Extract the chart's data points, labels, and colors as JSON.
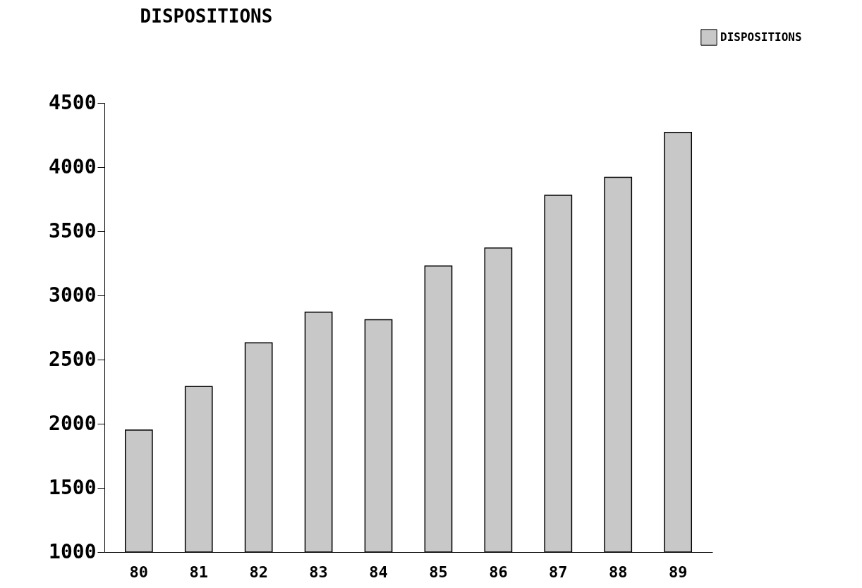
{
  "chart_data": {
    "type": "bar",
    "title": "DISPOSITIONS",
    "categories": [
      "80",
      "81",
      "82",
      "83",
      "84",
      "85",
      "86",
      "87",
      "88",
      "89"
    ],
    "series": [
      {
        "name": "DISPOSITIONS",
        "color": "#c8c8c8",
        "values": [
          1950,
          2290,
          2630,
          2870,
          2810,
          3230,
          3370,
          3780,
          3920,
          4270
        ]
      }
    ],
    "ylim": [
      1000,
      4500
    ],
    "yticks": [
      1000,
      1500,
      2000,
      2500,
      3000,
      3500,
      4000,
      4500
    ],
    "grid": false,
    "legend": "top right"
  }
}
